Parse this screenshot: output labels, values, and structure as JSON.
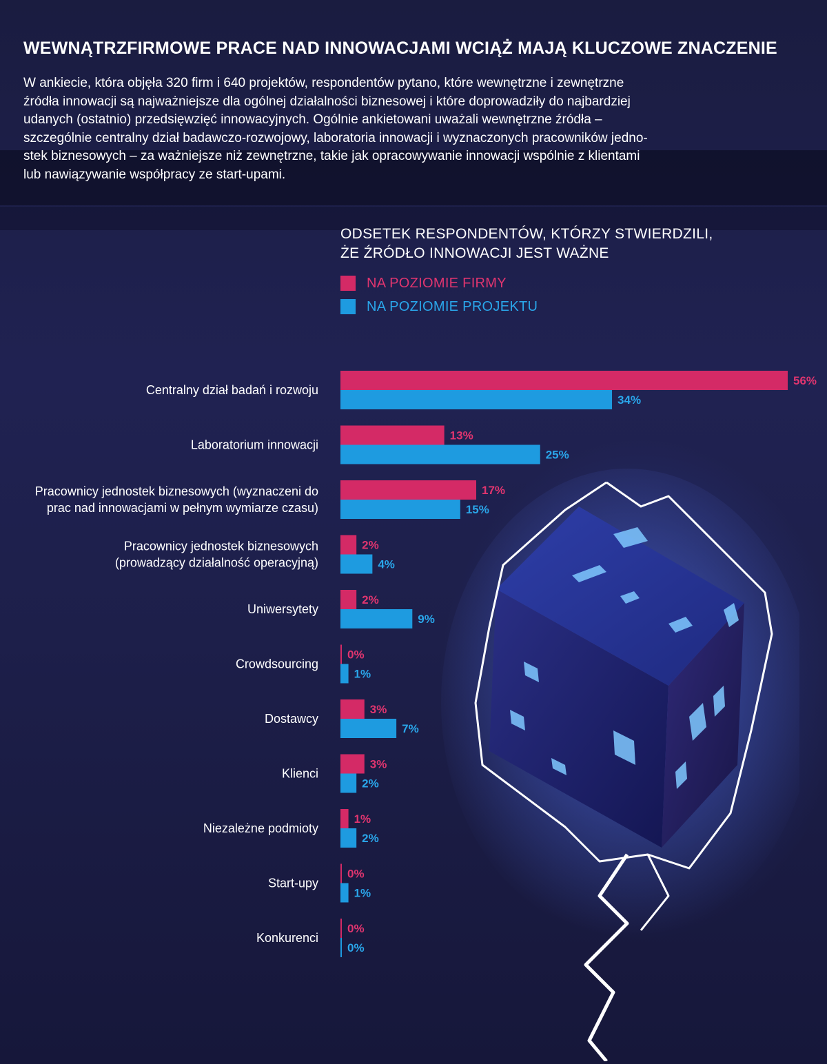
{
  "header": {
    "title": "WEWNĄTRZFIRMOWE PRACE NAD INNOWACJAMI WCIĄŻ MAJĄ KLUCZOWE ZNACZENIE",
    "intro": [
      "W ankiecie, która objęła 320 firm i 640 projektów, respondentów pytano, które wewnętrzne i zewnętrzne",
      "źródła innowacji są najważniejsze dla ogólnej działalności biznesowej i które doprowadziły do najbardziej",
      "udanych (ostatnio) przedsięwzięć innowacyjnych. Ogólnie ankietowani uważali wewnętrzne źródła –",
      "szczególnie centralny dział badawczo-rozwojowy, laboratoria innowacji i wyznaczonych pracowników jedno-",
      "stek biznesowych – za ważniejsze niż zewnętrzne, takie jak opracowywanie innowacji wspólnie z klientami",
      "lub nawiązywanie współpracy ze start-upami."
    ]
  },
  "chart_data": {
    "type": "bar",
    "orientation": "horizontal",
    "title": "ODSETEK RESPONDENTÓW, KTÓRZY STWIERDZILI, ŻE ŹRÓDŁO INNOWACJI JEST WAŻNE",
    "title_lines": [
      "ODSETEK RESPONDENTÓW, KTÓRZY STWIERDZILI,",
      "ŻE ŹRÓDŁO INNOWACJI JEST WAŻNE"
    ],
    "legend_position": "top",
    "categories": [
      [
        "Centralny dział badań i rozwoju"
      ],
      [
        "Laboratorium innowacji"
      ],
      [
        "Pracownicy jednostek biznesowych (wyznaczeni do",
        "prac nad innowacjami w pełnym wymiarze czasu)"
      ],
      [
        "Pracownicy jednostek biznesowych",
        "(prowadzący działalność operacyjną)"
      ],
      [
        "Uniwersytety"
      ],
      [
        "Crowdsourcing"
      ],
      [
        "Dostawcy"
      ],
      [
        "Klienci"
      ],
      [
        "Niezależne podmioty"
      ],
      [
        "Start-upy"
      ],
      [
        "Konkurenci"
      ]
    ],
    "series": [
      {
        "name": "NA POZIOMIE FIRMY",
        "color": "#d42a66",
        "values": [
          56,
          13,
          17,
          2,
          2,
          0,
          3,
          3,
          1,
          0,
          0
        ]
      },
      {
        "name": "NA POZIOMIE PROJEKTU",
        "color": "#1e9be0",
        "values": [
          34,
          25,
          15,
          4,
          9,
          1,
          7,
          2,
          2,
          1,
          0
        ]
      }
    ],
    "value_suffix": "%",
    "xlim": [
      0,
      56
    ],
    "grid": false
  },
  "colors": {
    "background": "#1d1f4a",
    "firm": "#d42a66",
    "project": "#1e9be0",
    "firm_label": "#e0356f",
    "project_label": "#2aa6ea"
  },
  "decoration": {
    "illustration": "glowing-cube-lightning-icon"
  }
}
